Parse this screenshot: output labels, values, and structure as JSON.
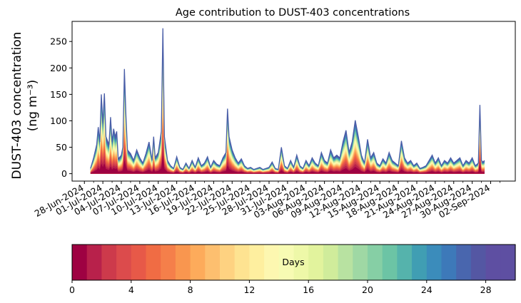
{
  "chart_data": {
    "type": "area",
    "title": "Age contribution to DUST-403 concentrations",
    "ylabel_line1": "DUST-403 concentration",
    "ylabel_line2": "(ng m⁻³)",
    "xlabel": "",
    "ylim": [
      -14,
      288
    ],
    "yticks": [
      0,
      50,
      100,
      150,
      200,
      250
    ],
    "x_tick_labels": [
      "28-Jun-2024",
      "01-Jul-2024",
      "04-Jul-2024",
      "07-Jul-2024",
      "10-Jul-2024",
      "13-Jul-2024",
      "16-Jul-2024",
      "19-Jul-2024",
      "22-Jul-2024",
      "25-Jul-2024",
      "28-Jul-2024",
      "31-Jul-2024",
      "03-Aug-2024",
      "06-Aug-2024",
      "09-Aug-2024",
      "12-Aug-2024",
      "15-Aug-2024",
      "18-Aug-2024",
      "21-Aug-2024",
      "24-Aug-2024",
      "27-Aug-2024",
      "30-Aug-2024",
      "02-Sep-2024"
    ],
    "x_start": "2024-06-29",
    "x_end": "2024-09-04",
    "total_concentration": [
      [
        "2024-06-29",
        10
      ],
      [
        "2024-06-29T12:00",
        30
      ],
      [
        "2024-06-30",
        55
      ],
      [
        "2024-06-30T06:00",
        88
      ],
      [
        "2024-06-30T12:00",
        60
      ],
      [
        "2024-06-30T18:00",
        150
      ],
      [
        "2024-07-01",
        95
      ],
      [
        "2024-07-01T06:00",
        152
      ],
      [
        "2024-07-01T12:00",
        70
      ],
      [
        "2024-07-02",
        55
      ],
      [
        "2024-07-02T06:00",
        107
      ],
      [
        "2024-07-02T12:00",
        60
      ],
      [
        "2024-07-02T18:00",
        85
      ],
      [
        "2024-07-03",
        70
      ],
      [
        "2024-07-03T06:00",
        80
      ],
      [
        "2024-07-03T12:00",
        28
      ],
      [
        "2024-07-04",
        35
      ],
      [
        "2024-07-04T06:00",
        50
      ],
      [
        "2024-07-04T12:00",
        198
      ],
      [
        "2024-07-04T18:00",
        110
      ],
      [
        "2024-07-05",
        45
      ],
      [
        "2024-07-05T12:00",
        38
      ],
      [
        "2024-07-06",
        25
      ],
      [
        "2024-07-06T12:00",
        45
      ],
      [
        "2024-07-07",
        30
      ],
      [
        "2024-07-07T12:00",
        20
      ],
      [
        "2024-07-08",
        38
      ],
      [
        "2024-07-08T12:00",
        60
      ],
      [
        "2024-07-09",
        25
      ],
      [
        "2024-07-09T06:00",
        70
      ],
      [
        "2024-07-09T12:00",
        30
      ],
      [
        "2024-07-10",
        40
      ],
      [
        "2024-07-10T12:00",
        80
      ],
      [
        "2024-07-10T18:00",
        275
      ],
      [
        "2024-07-11",
        70
      ],
      [
        "2024-07-11T12:00",
        25
      ],
      [
        "2024-07-12",
        15
      ],
      [
        "2024-07-12T12:00",
        10
      ],
      [
        "2024-07-13",
        32
      ],
      [
        "2024-07-13T12:00",
        12
      ],
      [
        "2024-07-14",
        8
      ],
      [
        "2024-07-14T12:00",
        20
      ],
      [
        "2024-07-15",
        10
      ],
      [
        "2024-07-15T12:00",
        25
      ],
      [
        "2024-07-16",
        12
      ],
      [
        "2024-07-16T12:00",
        30
      ],
      [
        "2024-07-17",
        15
      ],
      [
        "2024-07-17T12:00",
        20
      ],
      [
        "2024-07-18",
        32
      ],
      [
        "2024-07-18T12:00",
        12
      ],
      [
        "2024-07-19",
        25
      ],
      [
        "2024-07-19T12:00",
        18
      ],
      [
        "2024-07-20",
        15
      ],
      [
        "2024-07-20T12:00",
        30
      ],
      [
        "2024-07-21",
        40
      ],
      [
        "2024-07-21T06:00",
        123
      ],
      [
        "2024-07-21T12:00",
        70
      ],
      [
        "2024-07-22",
        45
      ],
      [
        "2024-07-22T12:00",
        30
      ],
      [
        "2024-07-23",
        20
      ],
      [
        "2024-07-23T12:00",
        28
      ],
      [
        "2024-07-24",
        15
      ],
      [
        "2024-07-24T12:00",
        10
      ],
      [
        "2024-07-25",
        12
      ],
      [
        "2024-07-25T12:00",
        8
      ],
      [
        "2024-07-26",
        10
      ],
      [
        "2024-07-26T12:00",
        12
      ],
      [
        "2024-07-27",
        8
      ],
      [
        "2024-07-27T12:00",
        10
      ],
      [
        "2024-07-28",
        12
      ],
      [
        "2024-07-28T12:00",
        22
      ],
      [
        "2024-07-29",
        10
      ],
      [
        "2024-07-29T12:00",
        8
      ],
      [
        "2024-07-30",
        50
      ],
      [
        "2024-07-30T12:00",
        15
      ],
      [
        "2024-07-31",
        10
      ],
      [
        "2024-07-31T12:00",
        25
      ],
      [
        "2024-08-01",
        12
      ],
      [
        "2024-08-01T12:00",
        35
      ],
      [
        "2024-08-02",
        15
      ],
      [
        "2024-08-02T12:00",
        10
      ],
      [
        "2024-08-03",
        25
      ],
      [
        "2024-08-03T12:00",
        15
      ],
      [
        "2024-08-04",
        30
      ],
      [
        "2024-08-04T12:00",
        20
      ],
      [
        "2024-08-05",
        15
      ],
      [
        "2024-08-05T12:00",
        40
      ],
      [
        "2024-08-06",
        25
      ],
      [
        "2024-08-06T12:00",
        20
      ],
      [
        "2024-08-07",
        45
      ],
      [
        "2024-08-07T12:00",
        30
      ],
      [
        "2024-08-08",
        35
      ],
      [
        "2024-08-08T12:00",
        30
      ],
      [
        "2024-08-09",
        60
      ],
      [
        "2024-08-09T12:00",
        82
      ],
      [
        "2024-08-10",
        40
      ],
      [
        "2024-08-10T12:00",
        60
      ],
      [
        "2024-08-11",
        101
      ],
      [
        "2024-08-11T12:00",
        70
      ],
      [
        "2024-08-12",
        35
      ],
      [
        "2024-08-12T12:00",
        20
      ],
      [
        "2024-08-13",
        65
      ],
      [
        "2024-08-13T12:00",
        30
      ],
      [
        "2024-08-14",
        40
      ],
      [
        "2024-08-14T12:00",
        20
      ],
      [
        "2024-08-15",
        15
      ],
      [
        "2024-08-15T12:00",
        28
      ],
      [
        "2024-08-16",
        20
      ],
      [
        "2024-08-16T12:00",
        40
      ],
      [
        "2024-08-17",
        25
      ],
      [
        "2024-08-17T12:00",
        20
      ],
      [
        "2024-08-18",
        15
      ],
      [
        "2024-08-18T12:00",
        62
      ],
      [
        "2024-08-19",
        30
      ],
      [
        "2024-08-19T12:00",
        20
      ],
      [
        "2024-08-20",
        25
      ],
      [
        "2024-08-20T12:00",
        15
      ],
      [
        "2024-08-21",
        20
      ],
      [
        "2024-08-21T12:00",
        10
      ],
      [
        "2024-08-22",
        12
      ],
      [
        "2024-08-22T12:00",
        15
      ],
      [
        "2024-08-23",
        25
      ],
      [
        "2024-08-23T12:00",
        35
      ],
      [
        "2024-08-24",
        20
      ],
      [
        "2024-08-24T12:00",
        30
      ],
      [
        "2024-08-25",
        15
      ],
      [
        "2024-08-25T12:00",
        25
      ],
      [
        "2024-08-26",
        20
      ],
      [
        "2024-08-26T12:00",
        30
      ],
      [
        "2024-08-27",
        20
      ],
      [
        "2024-08-27T12:00",
        25
      ],
      [
        "2024-08-28",
        30
      ],
      [
        "2024-08-28T12:00",
        15
      ],
      [
        "2024-08-29",
        25
      ],
      [
        "2024-08-29T12:00",
        20
      ],
      [
        "2024-08-30",
        30
      ],
      [
        "2024-08-30T12:00",
        15
      ],
      [
        "2024-08-31",
        20
      ],
      [
        "2024-08-31T06:00",
        130
      ],
      [
        "2024-08-31T12:00",
        25
      ],
      [
        "2024-08-31T18:00",
        22
      ],
      [
        "2024-09-01",
        25
      ]
    ],
    "colorbar": {
      "label": "Days",
      "min": 0,
      "max": 30,
      "levels": 30,
      "ticks": [
        0,
        4,
        8,
        12,
        16,
        20,
        24,
        28
      ],
      "colors": [
        "#9e0142",
        "#b8214b",
        "#cd3a4b",
        "#dc4b4c",
        "#e75948",
        "#f06c44",
        "#f57f4a",
        "#f9964f",
        "#fdab5b",
        "#fdbf6f",
        "#fed281",
        "#fee391",
        "#feef9f",
        "#fdf7b0",
        "#f7fbb3",
        "#eef8a8",
        "#e2f39d",
        "#d0ec9b",
        "#b8e2a1",
        "#9fd8a4",
        "#86cfa5",
        "#6cc4a5",
        "#55b3ac",
        "#409eb3",
        "#3b8cbb",
        "#3d79b9",
        "#4966ae",
        "#5457a3",
        "#5e4fa2",
        "#5e4fa2"
      ]
    },
    "grid": false,
    "legend": "colorbar-bottom"
  }
}
